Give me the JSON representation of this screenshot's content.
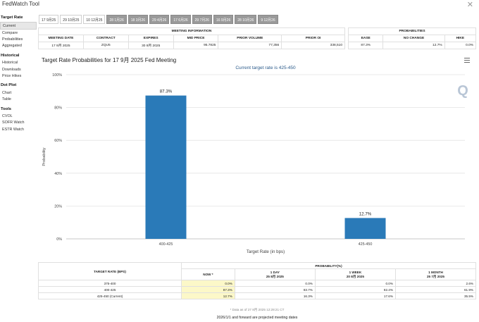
{
  "window": {
    "title": "FedWatch Tool",
    "close_glyph": "✕"
  },
  "sidebar": {
    "sections": [
      {
        "title": "Target Rate",
        "items": [
          "Current",
          "Compare",
          "Probabilities",
          "Aggregated"
        ]
      },
      {
        "title": "Historical",
        "items": [
          "Historical",
          "Downloads",
          "Price Hikes"
        ]
      },
      {
        "title": "Dot Plot",
        "items": [
          "Chart",
          "Table"
        ]
      },
      {
        "title": "Tools",
        "items": [
          "CVOL",
          "SOFR Watch",
          "ESTR Watch"
        ]
      }
    ],
    "active": "Current"
  },
  "tabs": [
    {
      "label": "17 9月25",
      "dark": false
    },
    {
      "label": "29 10月25",
      "dark": false
    },
    {
      "label": "10 12月25",
      "dark": false
    },
    {
      "label": "28 1月26",
      "dark": true
    },
    {
      "label": "18 3月26",
      "dark": true
    },
    {
      "label": "29 4月26",
      "dark": true
    },
    {
      "label": "17 6月26",
      "dark": true
    },
    {
      "label": "29 7月26",
      "dark": true
    },
    {
      "label": "16 9月26",
      "dark": true
    },
    {
      "label": "28 10月26",
      "dark": true
    },
    {
      "label": "9 12月26",
      "dark": true
    }
  ],
  "meeting_info": {
    "heading": "MEETING INFORMATION",
    "columns": [
      "MEETING DATE",
      "CONTRACT",
      "EXPIRES",
      "MID PRICE",
      "PRIOR VOLUME",
      "PRIOR OI"
    ],
    "values": [
      "17 9月 2025",
      "ZQU5",
      "30 9月 2025",
      "95.7825",
      "77,356",
      "338,510"
    ]
  },
  "probabilities": {
    "heading": "PROBABILITIES",
    "columns": [
      "EASE",
      "NO CHANGE",
      "HIKE"
    ],
    "values": [
      "87.3%",
      "12.7%",
      "0.0%"
    ]
  },
  "chart_title": "Target Rate Probabilities for 17 9月 2025 Fed Meeting",
  "chart_data": {
    "type": "bar",
    "subtitle": "Current target rate is 425-450",
    "categories": [
      "400-425",
      "425-450"
    ],
    "values": [
      87.3,
      12.7
    ],
    "data_labels": [
      "87.3%",
      "12.7%"
    ],
    "xlabel": "Target Rate (in bps)",
    "ylabel": "Probability",
    "ylim": [
      0,
      100
    ],
    "yticks": [
      "0%",
      "20%",
      "40%",
      "60%",
      "80%",
      "100%"
    ],
    "bar_color": "#2a7ab8",
    "grid": true,
    "watermark": "Q"
  },
  "bottom_table": {
    "target_rate_header": "TARGET RATE (BPS)",
    "probability_header": "PROBABILITY(%)",
    "subcolumns": [
      {
        "line1": "NOW *",
        "line2": ""
      },
      {
        "line1": "1 DAY",
        "line2": "25 8月 2025"
      },
      {
        "line1": "1 WEEK",
        "line2": "20 8月 2025"
      },
      {
        "line1": "1 MONTH",
        "line2": "25 7月 2025"
      }
    ],
    "rows": [
      {
        "rate": "375-400",
        "now": "0.0%",
        "day": "0.0%",
        "week": "0.0%",
        "month": "2.6%"
      },
      {
        "rate": "400-425",
        "now": "87.3%",
        "day": "83.7%",
        "week": "82.4%",
        "month": "61.9%"
      },
      {
        "rate": "425-450 (Current)",
        "now": "12.7%",
        "day": "16.3%",
        "week": "17.6%",
        "month": "35.5%"
      }
    ]
  },
  "data_as_of": "* Data as of 27 8月 2025 12:28:21 CT",
  "footer_note": "2026/1/1 and forward are projected meeting dates"
}
